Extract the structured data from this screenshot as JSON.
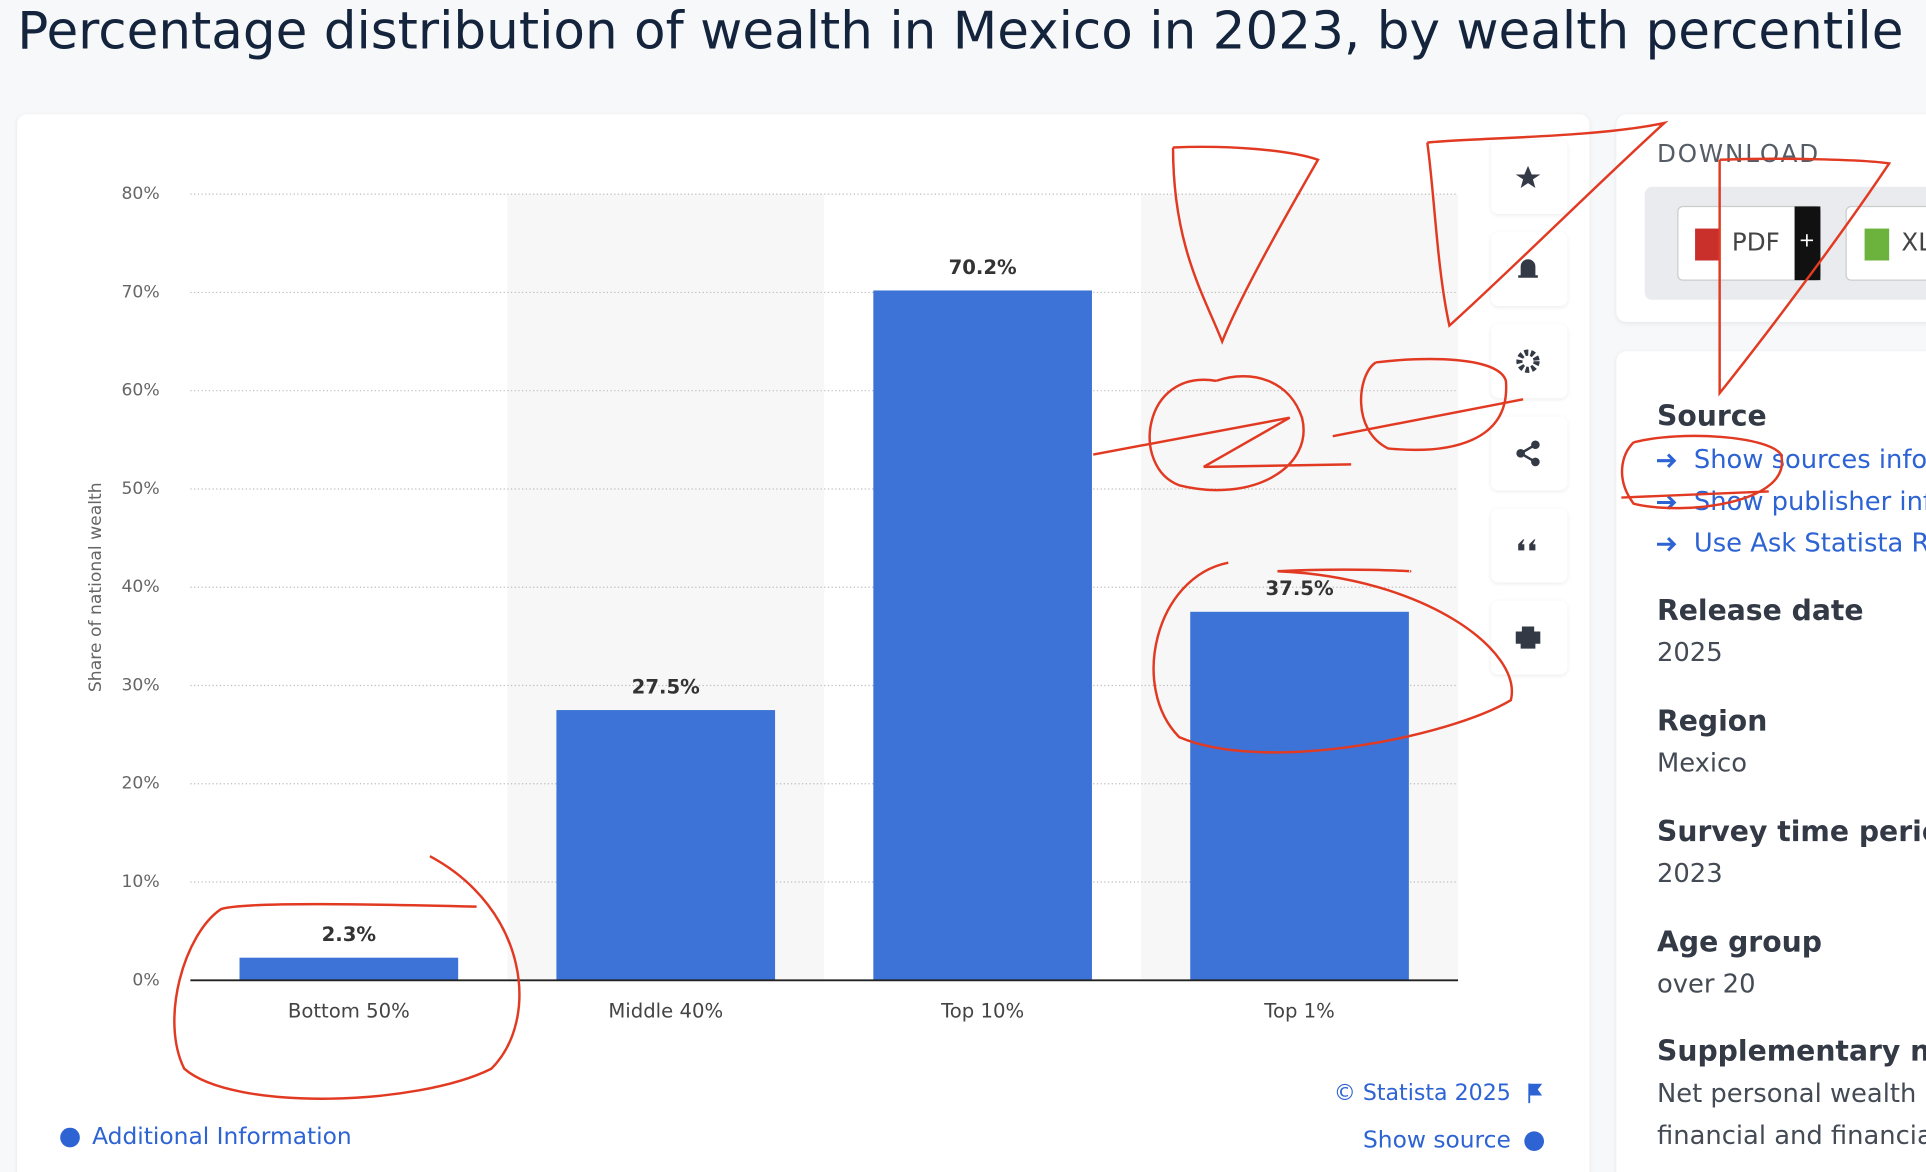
{
  "title": "Percentage distribution of wealth in Mexico in 2023, by wealth percentile",
  "chart_data": {
    "type": "bar",
    "ylabel": "Share of national wealth",
    "categories": [
      "Bottom 50%",
      "Middle 40%",
      "Top 10%",
      "Top 1%"
    ],
    "values": [
      2.3,
      27.5,
      70.2,
      37.5
    ],
    "value_labels": [
      "2.3%",
      "27.5%",
      "70.2%",
      "37.5%"
    ],
    "color": "#3d72d7",
    "grid": true,
    "ylim": [
      0,
      80
    ],
    "yticks": [
      {
        "value": 0,
        "label": "0%"
      },
      {
        "value": 10,
        "label": "10%"
      },
      {
        "value": 20,
        "label": "20%"
      },
      {
        "value": 30,
        "label": "30%"
      },
      {
        "value": 40,
        "label": "40%"
      },
      {
        "value": 50,
        "label": "50%"
      },
      {
        "value": 60,
        "label": "60%"
      },
      {
        "value": 70,
        "label": "70%"
      },
      {
        "value": 80,
        "label": "80%"
      }
    ]
  },
  "chart_footer": {
    "copyright": "© Statista 2025",
    "show_source": "Show source",
    "additional_info": "Additional Information"
  },
  "sidebar": {
    "download": "DOWNLOAD",
    "buttons": [
      "PDF",
      "+",
      "XL"
    ],
    "source_heading": "Source",
    "source_links": [
      "Show sources infor",
      "Show publisher inf",
      "Use Ask Statista Re"
    ],
    "details": [
      {
        "heading": "Release date",
        "value": "2025"
      },
      {
        "heading": "Region",
        "value": "Mexico"
      },
      {
        "heading": "Survey time perioc",
        "value": "2023"
      },
      {
        "heading": "Age group",
        "value": "over 20"
      }
    ],
    "supplementary_heading": "Supplementary no",
    "supplementary_lines": [
      "Net personal wealth i",
      "financial and financia"
    ]
  }
}
